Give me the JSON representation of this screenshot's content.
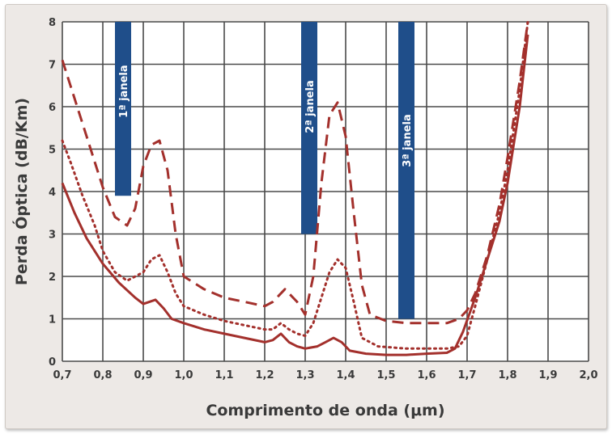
{
  "chart_data": {
    "type": "line",
    "xlabel": "Comprimento de onda (μm)",
    "ylabel": "Perda Óptica (dB/Km)",
    "xlim": [
      0.7,
      2.0
    ],
    "ylim": [
      0,
      8
    ],
    "x_ticks": [
      "0,7",
      "0,8",
      "0,9",
      "1,0",
      "1,1",
      "1,2",
      "1,3",
      "1,4",
      "1,5",
      "1,6",
      "1,7",
      "1,8",
      "1,9",
      "2,0"
    ],
    "y_ticks": [
      "0",
      "1",
      "2",
      "3",
      "4",
      "5",
      "6",
      "7",
      "8"
    ],
    "grid": true,
    "line_color": "#a3302c",
    "band_color": "#1f4e8a",
    "windows": [
      {
        "label": "1ª janela",
        "x_center": 0.85,
        "y_from": 3.9,
        "y_to": 8
      },
      {
        "label": "2ª janela",
        "x_center": 1.31,
        "y_from": 3.0,
        "y_to": 8
      },
      {
        "label": "3ª janela",
        "x_center": 1.55,
        "y_from": 1.0,
        "y_to": 8
      }
    ],
    "series": [
      {
        "style": "dashed",
        "x": [
          0.7,
          0.72,
          0.75,
          0.8,
          0.83,
          0.86,
          0.88,
          0.9,
          0.92,
          0.94,
          0.96,
          0.98,
          1.0,
          1.05,
          1.1,
          1.15,
          1.2,
          1.22,
          1.25,
          1.28,
          1.3,
          1.32,
          1.34,
          1.36,
          1.38,
          1.4,
          1.42,
          1.44,
          1.46,
          1.5,
          1.55,
          1.6,
          1.65,
          1.68,
          1.7,
          1.72,
          1.75,
          1.78,
          1.8,
          1.83,
          1.85
        ],
        "y": [
          7.1,
          6.5,
          5.6,
          4.1,
          3.4,
          3.2,
          3.6,
          4.6,
          5.1,
          5.2,
          4.5,
          3.0,
          2.0,
          1.7,
          1.5,
          1.4,
          1.3,
          1.4,
          1.7,
          1.4,
          1.1,
          2.0,
          4.2,
          5.8,
          6.1,
          5.3,
          3.5,
          1.8,
          1.1,
          0.95,
          0.9,
          0.9,
          0.9,
          1.0,
          1.2,
          1.6,
          2.5,
          3.7,
          4.8,
          6.6,
          8.0
        ]
      },
      {
        "style": "dotted",
        "x": [
          0.7,
          0.72,
          0.75,
          0.78,
          0.8,
          0.83,
          0.86,
          0.9,
          0.92,
          0.94,
          0.96,
          0.98,
          1.0,
          1.05,
          1.1,
          1.15,
          1.2,
          1.22,
          1.24,
          1.26,
          1.28,
          1.3,
          1.32,
          1.34,
          1.36,
          1.38,
          1.4,
          1.42,
          1.44,
          1.48,
          1.55,
          1.6,
          1.65,
          1.68,
          1.7,
          1.72,
          1.75,
          1.78,
          1.8,
          1.83,
          1.85
        ],
        "y": [
          5.2,
          4.7,
          3.9,
          3.2,
          2.6,
          2.1,
          1.9,
          2.1,
          2.4,
          2.5,
          2.1,
          1.6,
          1.3,
          1.1,
          0.95,
          0.85,
          0.75,
          0.75,
          0.9,
          0.75,
          0.65,
          0.6,
          0.9,
          1.5,
          2.1,
          2.4,
          2.2,
          1.4,
          0.55,
          0.35,
          0.3,
          0.3,
          0.3,
          0.35,
          0.6,
          1.3,
          2.4,
          3.5,
          4.5,
          6.4,
          8.0
        ]
      },
      {
        "style": "solid",
        "x": [
          0.7,
          0.73,
          0.76,
          0.8,
          0.84,
          0.88,
          0.9,
          0.93,
          0.95,
          0.97,
          1.0,
          1.05,
          1.1,
          1.15,
          1.2,
          1.22,
          1.24,
          1.26,
          1.28,
          1.3,
          1.33,
          1.35,
          1.37,
          1.39,
          1.41,
          1.45,
          1.5,
          1.55,
          1.6,
          1.65,
          1.67,
          1.69,
          1.72,
          1.75,
          1.78,
          1.8,
          1.83,
          1.85
        ],
        "y": [
          4.2,
          3.5,
          2.9,
          2.3,
          1.85,
          1.5,
          1.35,
          1.45,
          1.25,
          1.0,
          0.9,
          0.75,
          0.65,
          0.55,
          0.45,
          0.5,
          0.65,
          0.45,
          0.35,
          0.3,
          0.35,
          0.45,
          0.55,
          0.45,
          0.25,
          0.18,
          0.15,
          0.15,
          0.18,
          0.2,
          0.3,
          0.7,
          1.5,
          2.4,
          3.3,
          4.2,
          6.0,
          7.7
        ]
      }
    ]
  }
}
